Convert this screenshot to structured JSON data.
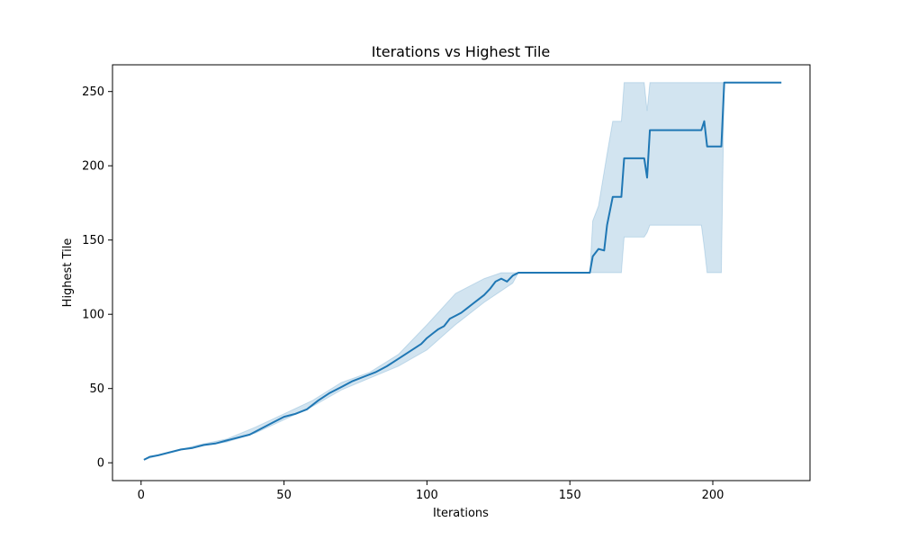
{
  "chart_data": {
    "type": "line",
    "title": "Iterations vs Highest Tile",
    "xlabel": "Iterations",
    "ylabel": "Highest Tile",
    "xlim": [
      -10,
      234
    ],
    "ylim": [
      -12,
      268
    ],
    "xticks": [
      0,
      50,
      100,
      150,
      200
    ],
    "yticks": [
      0,
      50,
      100,
      150,
      200,
      250
    ],
    "grid": false,
    "colors": {
      "line": "#1f77b4",
      "band": "#1f77b4"
    },
    "series": [
      {
        "points": [
          [
            1,
            2
          ],
          [
            3,
            4
          ],
          [
            6,
            5
          ],
          [
            10,
            7
          ],
          [
            14,
            9
          ],
          [
            18,
            10
          ],
          [
            22,
            12
          ],
          [
            26,
            13
          ],
          [
            30,
            15
          ],
          [
            34,
            17
          ],
          [
            38,
            19
          ],
          [
            42,
            23
          ],
          [
            46,
            27
          ],
          [
            50,
            31
          ],
          [
            54,
            33
          ],
          [
            58,
            36
          ],
          [
            62,
            42
          ],
          [
            66,
            47
          ],
          [
            70,
            51
          ],
          [
            74,
            55
          ],
          [
            78,
            58
          ],
          [
            82,
            61
          ],
          [
            86,
            65
          ],
          [
            90,
            70
          ],
          [
            94,
            75
          ],
          [
            98,
            80
          ],
          [
            100,
            84
          ],
          [
            102,
            87
          ],
          [
            104,
            90
          ],
          [
            106,
            92
          ],
          [
            108,
            97
          ],
          [
            110,
            99
          ],
          [
            112,
            101
          ],
          [
            114,
            104
          ],
          [
            116,
            107
          ],
          [
            118,
            110
          ],
          [
            120,
            113
          ],
          [
            122,
            117
          ],
          [
            124,
            122
          ],
          [
            126,
            124
          ],
          [
            128,
            122
          ],
          [
            130,
            126
          ],
          [
            132,
            128
          ],
          [
            157,
            128
          ],
          [
            158,
            139
          ],
          [
            160,
            144
          ],
          [
            162,
            143
          ],
          [
            163,
            160
          ],
          [
            165,
            179
          ],
          [
            168,
            179
          ],
          [
            169,
            205
          ],
          [
            176,
            205
          ],
          [
            177,
            192
          ],
          [
            178,
            224
          ],
          [
            196,
            224
          ],
          [
            197,
            230
          ],
          [
            198,
            213
          ],
          [
            203,
            213
          ],
          [
            204,
            256
          ],
          [
            224,
            256
          ]
        ],
        "lower": [
          [
            1,
            2
          ],
          [
            10,
            7
          ],
          [
            20,
            11
          ],
          [
            30,
            14
          ],
          [
            40,
            20
          ],
          [
            50,
            29
          ],
          [
            60,
            38
          ],
          [
            70,
            49
          ],
          [
            80,
            57
          ],
          [
            90,
            65
          ],
          [
            100,
            76
          ],
          [
            110,
            93
          ],
          [
            120,
            108
          ],
          [
            130,
            121
          ],
          [
            132,
            128
          ],
          [
            157,
            128
          ],
          [
            165,
            128
          ],
          [
            168,
            128
          ],
          [
            169,
            152
          ],
          [
            176,
            152
          ],
          [
            177,
            155
          ],
          [
            178,
            160
          ],
          [
            196,
            160
          ],
          [
            197,
            145
          ],
          [
            198,
            128
          ],
          [
            203,
            128
          ],
          [
            204,
            256
          ],
          [
            224,
            256
          ]
        ],
        "upper": [
          [
            1,
            2
          ],
          [
            10,
            7
          ],
          [
            20,
            12
          ],
          [
            30,
            16
          ],
          [
            40,
            24
          ],
          [
            50,
            33
          ],
          [
            60,
            42
          ],
          [
            70,
            54
          ],
          [
            80,
            61
          ],
          [
            90,
            73
          ],
          [
            100,
            93
          ],
          [
            110,
            114
          ],
          [
            120,
            124
          ],
          [
            126,
            128
          ],
          [
            132,
            128
          ],
          [
            157,
            128
          ],
          [
            158,
            163
          ],
          [
            160,
            173
          ],
          [
            163,
            208
          ],
          [
            165,
            230
          ],
          [
            168,
            230
          ],
          [
            169,
            256
          ],
          [
            176,
            256
          ],
          [
            177,
            237
          ],
          [
            178,
            256
          ],
          [
            196,
            256
          ],
          [
            197,
            256
          ],
          [
            198,
            256
          ],
          [
            203,
            256
          ],
          [
            204,
            256
          ],
          [
            224,
            256
          ]
        ]
      }
    ]
  }
}
